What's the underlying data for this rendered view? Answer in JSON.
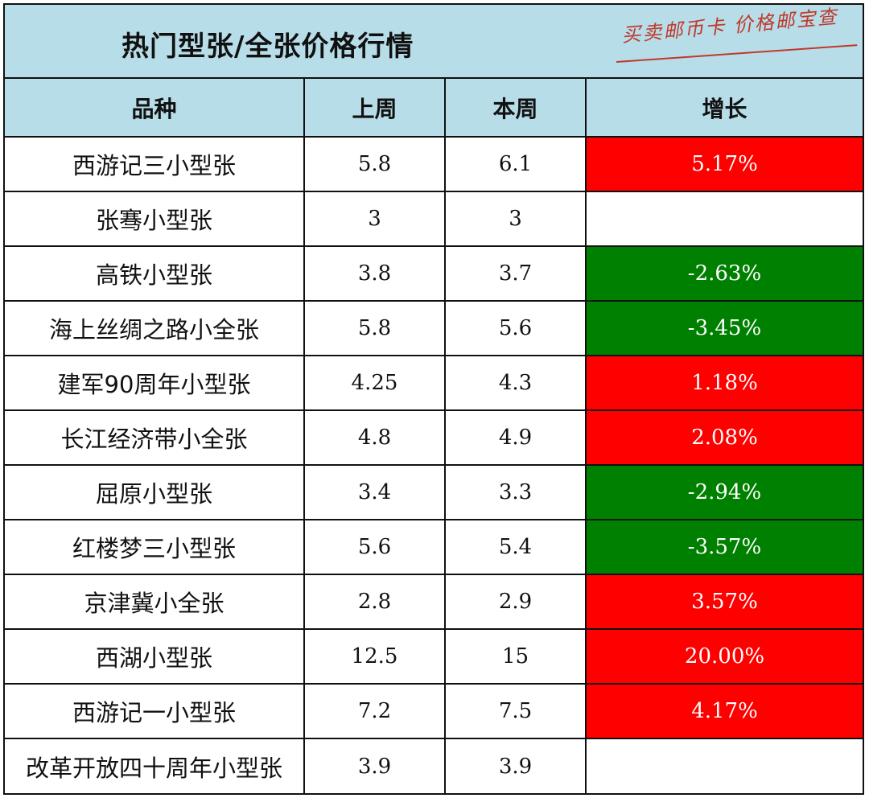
{
  "title": "热门型张/全张价格行情",
  "watermark": "买卖邮币卡 价格邮宝查",
  "colors": {
    "header_bg": "#b7dde8",
    "increase": "#ff0000",
    "decrease": "#008000"
  },
  "columns": [
    "品种",
    "上周",
    "本周",
    "增长"
  ],
  "rows": [
    {
      "name": "西游记三小型张",
      "last_week": "5.8",
      "this_week": "6.1",
      "growth": "5.17%",
      "trend": "up"
    },
    {
      "name": "张骞小型张",
      "last_week": "3",
      "this_week": "3",
      "growth": "",
      "trend": "none"
    },
    {
      "name": "高铁小型张",
      "last_week": "3.8",
      "this_week": "3.7",
      "growth": "-2.63%",
      "trend": "down"
    },
    {
      "name": "海上丝绸之路小全张",
      "last_week": "5.8",
      "this_week": "5.6",
      "growth": "-3.45%",
      "trend": "down"
    },
    {
      "name": "建军90周年小型张",
      "last_week": "4.25",
      "this_week": "4.3",
      "growth": "1.18%",
      "trend": "up"
    },
    {
      "name": "长江经济带小全张",
      "last_week": "4.8",
      "this_week": "4.9",
      "growth": "2.08%",
      "trend": "up"
    },
    {
      "name": "屈原小型张",
      "last_week": "3.4",
      "this_week": "3.3",
      "growth": "-2.94%",
      "trend": "down"
    },
    {
      "name": "红楼梦三小型张",
      "last_week": "5.6",
      "this_week": "5.4",
      "growth": "-3.57%",
      "trend": "down"
    },
    {
      "name": "京津冀小全张",
      "last_week": "2.8",
      "this_week": "2.9",
      "growth": "3.57%",
      "trend": "up"
    },
    {
      "name": "西湖小型张",
      "last_week": "12.5",
      "this_week": "15",
      "growth": "20.00%",
      "trend": "up"
    },
    {
      "name": "西游记一小型张",
      "last_week": "7.2",
      "this_week": "7.5",
      "growth": "4.17%",
      "trend": "up"
    },
    {
      "name": "改革开放四十周年小型张",
      "last_week": "3.9",
      "this_week": "3.9",
      "growth": "",
      "trend": "none"
    }
  ]
}
